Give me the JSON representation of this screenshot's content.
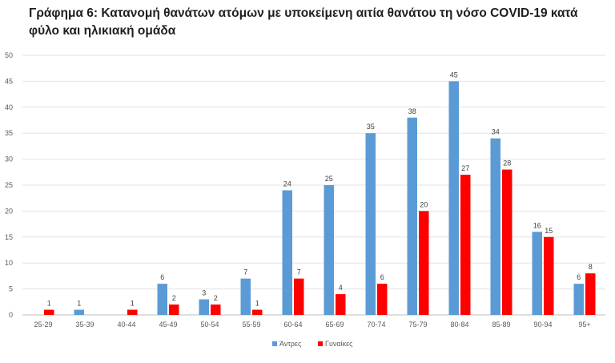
{
  "chart_data": {
    "type": "bar",
    "title": "Γράφημα 6: Κατανομή θανάτων ατόμων με υποκείμενη αιτία θανάτου τη νόσο COVID-19 κατά φύλο και ηλικιακή ομάδα",
    "categories": [
      "25-29",
      "35-39",
      "40-44",
      "45-49",
      "50-54",
      "55-59",
      "60-64",
      "65-69",
      "70-74",
      "75-79",
      "80-84",
      "85-89",
      "90-94",
      "95+"
    ],
    "series": [
      {
        "name": "Άντρες",
        "color": "#5b9bd5",
        "values": [
          null,
          1,
          null,
          6,
          3,
          7,
          24,
          25,
          35,
          38,
          45,
          34,
          16,
          6
        ]
      },
      {
        "name": "Γυναίκες",
        "color": "#ff0000",
        "values": [
          1,
          null,
          1,
          2,
          2,
          1,
          7,
          4,
          6,
          20,
          27,
          28,
          15,
          8
        ]
      }
    ],
    "yticks": [
      "0",
      "5",
      "10",
      "15",
      "20",
      "25",
      "30",
      "35",
      "40",
      "45",
      "50"
    ],
    "ylim": [
      0,
      50
    ],
    "grid": true,
    "legend": "bottom"
  }
}
